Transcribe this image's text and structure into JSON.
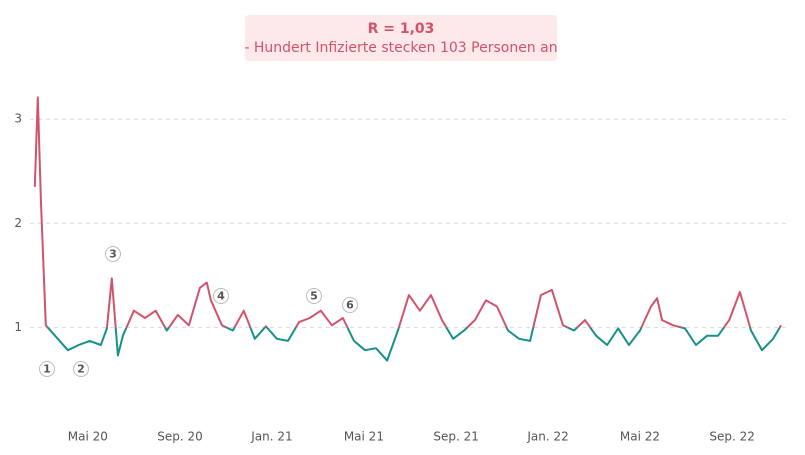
{
  "chart_data": {
    "type": "line",
    "title": "R = 1,03",
    "subtitle": "- Hundert Infizierte stecken 103 Personen an",
    "x": [
      2020.141,
      2020.152,
      2020.163,
      2020.181,
      2020.221,
      2020.261,
      2020.3,
      2020.34,
      2020.38,
      2020.402,
      2020.42,
      2020.442,
      2020.46,
      2020.5,
      2020.54,
      2020.579,
      2020.619,
      2020.659,
      2020.699,
      2020.739,
      2020.764,
      2020.779,
      2020.819,
      2020.858,
      2020.898,
      2020.938,
      2020.978,
      2021.018,
      2021.058,
      2021.098,
      2021.137,
      2021.177,
      2021.217,
      2021.257,
      2021.297,
      2021.337,
      2021.377,
      2021.417,
      2021.456,
      2021.496,
      2021.536,
      2021.576,
      2021.616,
      2021.656,
      2021.696,
      2021.735,
      2021.775,
      2021.815,
      2021.855,
      2021.895,
      2021.935,
      2021.974,
      2022.014,
      2022.054,
      2022.094,
      2022.134,
      2022.174,
      2022.214,
      2022.254,
      2022.293,
      2022.333,
      2022.373,
      2022.395,
      2022.413,
      2022.453,
      2022.496,
      2022.536,
      2022.576,
      2022.616,
      2022.656,
      2022.695,
      2022.735,
      2022.775,
      2022.815,
      2022.844
    ],
    "series": [
      {
        "name": "R",
        "values": [
          2.35,
          3.21,
          2.22,
          1.02,
          0.9,
          0.78,
          0.83,
          0.87,
          0.83,
          0.99,
          1.47,
          0.73,
          0.92,
          1.16,
          1.09,
          1.16,
          0.97,
          1.12,
          1.02,
          1.38,
          1.43,
          1.26,
          1.02,
          0.97,
          1.16,
          0.89,
          1.01,
          0.89,
          0.87,
          1.05,
          1.09,
          1.16,
          1.02,
          1.09,
          0.87,
          0.78,
          0.8,
          0.68,
          0.97,
          1.31,
          1.16,
          1.31,
          1.07,
          0.89,
          0.97,
          1.07,
          1.26,
          1.2,
          0.97,
          0.89,
          0.87,
          1.31,
          1.36,
          1.02,
          0.97,
          1.07,
          0.92,
          0.83,
          0.99,
          0.83,
          0.97,
          1.2,
          1.28,
          1.07,
          1.02,
          0.99,
          0.83,
          0.92,
          0.92,
          1.07,
          1.34,
          0.97,
          0.78,
          0.89,
          1.02
        ]
      }
    ],
    "threshold": 1,
    "color_above": "#d1536b",
    "color_below": "#16908a",
    "xlim": [
      2020.12,
      2022.88
    ],
    "xticks": [
      {
        "value": 2020.333,
        "label": "Mai 20"
      },
      {
        "value": 2020.667,
        "label": "Sep. 20"
      },
      {
        "value": 2021.0,
        "label": "Jan. 21"
      },
      {
        "value": 2021.333,
        "label": "Mai 21"
      },
      {
        "value": 2021.667,
        "label": "Sep. 21"
      },
      {
        "value": 2022.0,
        "label": "Jan. 22"
      },
      {
        "value": 2022.333,
        "label": "Mai 22"
      },
      {
        "value": 2022.667,
        "label": "Sep. 22"
      }
    ],
    "ylim": [
      0.1,
      3.3
    ],
    "yticks": [
      1,
      2,
      3
    ],
    "grid": true,
    "annotations": [
      "1",
      "2",
      "3",
      "4",
      "5",
      "6"
    ]
  }
}
